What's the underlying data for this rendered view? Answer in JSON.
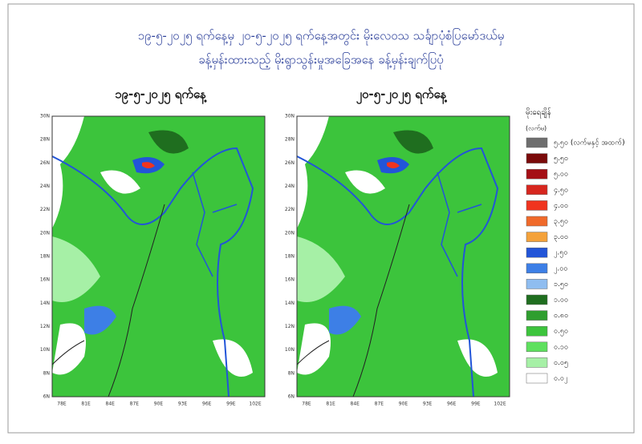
{
  "header": {
    "title_lines": [
      "၁၉-၅-၂၀၂၅ ရက်နေ့မှ ၂၀-၅-၂၀၂၅ ရက်နေ့အတွင်း မိုးလေဝသ သင်္ချာပုံစံပြမော်ဒယ်မှ",
      "ခန့်မှန်းထားသည့် မိုးရွာသွန်းမှုအခြေအနေ ခန့်မှန်းချက်ပြပုံ"
    ]
  },
  "maps": [
    {
      "title": "၁၉-၅-၂၀၂၅ ရက်နေ့"
    },
    {
      "title": "၂၀-၅-၂၀၂၅ ရက်နေ့"
    }
  ],
  "axes": {
    "lat_labels": [
      "30N",
      "28N",
      "26N",
      "24N",
      "22N",
      "20N",
      "18N",
      "16N",
      "14N",
      "12N",
      "10N",
      "8N",
      "6N"
    ],
    "lon_labels": [
      "78E",
      "81E",
      "84E",
      "87E",
      "90E",
      "93E",
      "96E",
      "99E",
      "102E"
    ]
  },
  "legend": {
    "title": "မိုးရေချိန်",
    "unit": "(လက်မ)",
    "items": [
      {
        "label": "၅.၅၀ (လက်မနှင့် အထက်)",
        "color": "#6e6e6e"
      },
      {
        "label": "၅.၅၀",
        "color": "#7a0a0a"
      },
      {
        "label": "၅.၀၀",
        "color": "#a50f15"
      },
      {
        "label": "၄.၅၀",
        "color": "#d7261e"
      },
      {
        "label": "၄.၀၀",
        "color": "#f0341f"
      },
      {
        "label": "၃.၅၀",
        "color": "#f06a2a"
      },
      {
        "label": "၃.၀၀",
        "color": "#f4a23a"
      },
      {
        "label": "၂.၅၀",
        "color": "#2255d8"
      },
      {
        "label": "၂.၀၀",
        "color": "#3d7fe6"
      },
      {
        "label": "၁.၅၀",
        "color": "#8fbdf0"
      },
      {
        "label": "၁.၀၀",
        "color": "#1f6e1f"
      },
      {
        "label": "၀.၈၀",
        "color": "#2f9e2f"
      },
      {
        "label": "၀.၅၀",
        "color": "#3cc43c"
      },
      {
        "label": "၀.၁၀",
        "color": "#5ee05e"
      },
      {
        "label": "၀.၀၅",
        "color": "#a6f0a6"
      },
      {
        "label": "၀.၀၂",
        "color": "#ffffff"
      }
    ]
  }
}
